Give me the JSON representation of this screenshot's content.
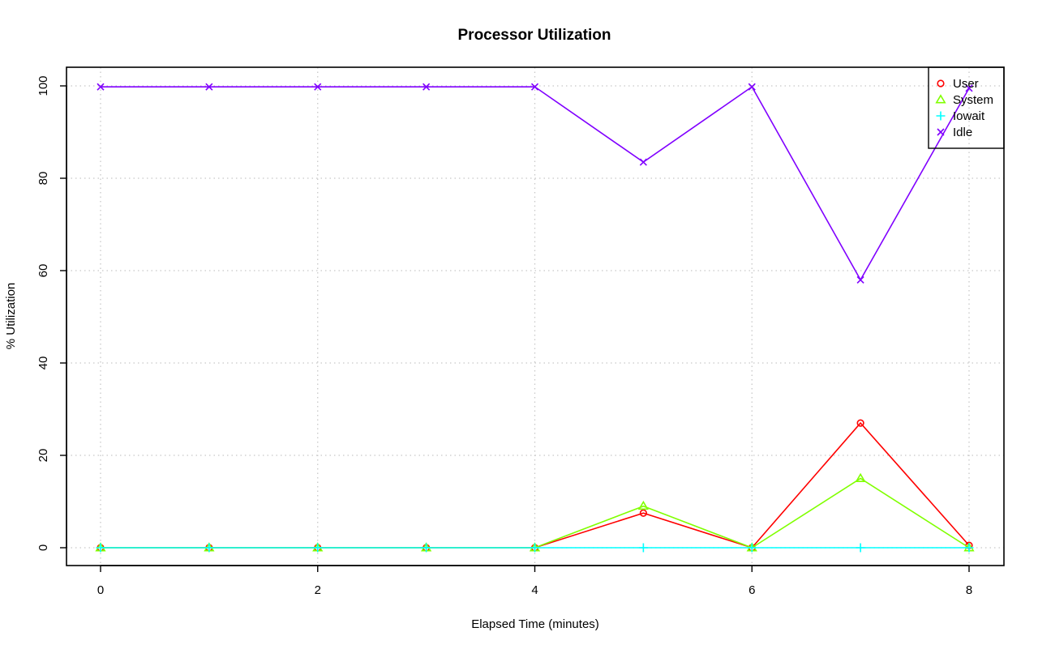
{
  "chart_data": {
    "type": "line",
    "title": "Processor Utilization",
    "xlabel": "Elapsed Time (minutes)",
    "ylabel": "% Utilization",
    "x": [
      0,
      1,
      2,
      3,
      4,
      5,
      6,
      7,
      8
    ],
    "xlim": [
      0,
      8
    ],
    "ylim": [
      0,
      100
    ],
    "xticks": [
      0,
      2,
      4,
      6,
      8
    ],
    "yticks": [
      0,
      20,
      40,
      60,
      80,
      100
    ],
    "grid": true,
    "legend_position": "top-right",
    "series": [
      {
        "name": "User",
        "color": "#ff0000",
        "marker": "circle",
        "values": [
          0,
          0,
          0,
          0,
          0,
          7.5,
          0,
          27,
          0.5
        ]
      },
      {
        "name": "System",
        "color": "#80ff00",
        "marker": "triangle",
        "values": [
          0,
          0,
          0,
          0,
          0,
          9,
          0,
          15,
          0
        ]
      },
      {
        "name": "Iowait",
        "color": "#00ffff",
        "marker": "plus",
        "values": [
          0,
          0,
          0,
          0,
          0,
          0,
          0,
          0,
          0
        ]
      },
      {
        "name": "Idle",
        "color": "#8000ff",
        "marker": "cross",
        "values": [
          99.8,
          99.8,
          99.8,
          99.8,
          99.8,
          83.5,
          99.8,
          58,
          99.5
        ]
      }
    ]
  }
}
